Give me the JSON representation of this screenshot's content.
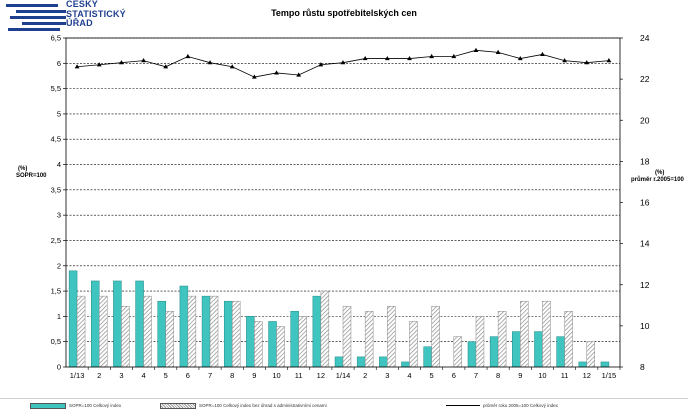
{
  "header": {
    "org_line1": "ČESKÝ",
    "org_line2": "STATISTICKÝ",
    "org_line3": "ÚŘAD",
    "title": "Tempo růstu spotřebitelských cen"
  },
  "axes": {
    "left_unit": "(%)",
    "left_label": "SOPR=100",
    "right_unit": "(%)",
    "right_label": "průměr r.2005=100"
  },
  "legend": {
    "series1": "SOPR=100 Celkový index",
    "series2": "SOPR=100 Celkový index bez úhrad s administrativními cenami",
    "series3": "průměr roku 2005=100 Celkový index"
  },
  "colors": {
    "teal": "#40c4c0",
    "hatch": "#a0a0a0",
    "line": "#000000"
  },
  "chart_data": {
    "type": "bar",
    "categories": [
      "1/13",
      "2",
      "3",
      "4",
      "5",
      "6",
      "7",
      "8",
      "9",
      "10",
      "11",
      "12",
      "1/14",
      "2",
      "3",
      "4",
      "5",
      "6",
      "7",
      "8",
      "9",
      "10",
      "11",
      "12",
      "1/15"
    ],
    "left_ylim": [
      0,
      6.5
    ],
    "left_ticks": [
      "0",
      "0,5",
      "1",
      "1,5",
      "2",
      "2,5",
      "3",
      "3,5",
      "4",
      "4,5",
      "5",
      "5,5",
      "6",
      "6,5"
    ],
    "right_ylim": [
      8,
      24
    ],
    "right_ticks": [
      "8",
      "10",
      "12",
      "14",
      "16",
      "18",
      "20",
      "22",
      "24"
    ],
    "grid": true,
    "series": [
      {
        "values": [
          1.9,
          1.7,
          1.7,
          1.7,
          1.3,
          1.6,
          1.4,
          1.3,
          1.0,
          0.9,
          1.1,
          1.4,
          0.2,
          0.2,
          0.2,
          0.1,
          0.4,
          0.0,
          0.5,
          0.6,
          0.7,
          0.7,
          0.6,
          0.1,
          0.1
        ]
      },
      {
        "values": [
          1.4,
          1.4,
          1.2,
          1.4,
          1.1,
          1.4,
          1.4,
          1.3,
          0.9,
          0.8,
          1.0,
          1.5,
          1.2,
          1.1,
          1.2,
          0.9,
          1.2,
          0.6,
          1.0,
          1.1,
          1.3,
          1.3,
          1.1,
          0.5,
          0.0
        ]
      },
      {
        "values": [
          22.6,
          22.7,
          22.8,
          22.9,
          22.6,
          23.1,
          22.8,
          22.6,
          22.1,
          22.3,
          22.2,
          22.7,
          22.8,
          23.0,
          23.0,
          23.0,
          23.1,
          23.1,
          23.4,
          23.3,
          23.0,
          23.2,
          22.9,
          22.8,
          22.9
        ]
      }
    ]
  }
}
